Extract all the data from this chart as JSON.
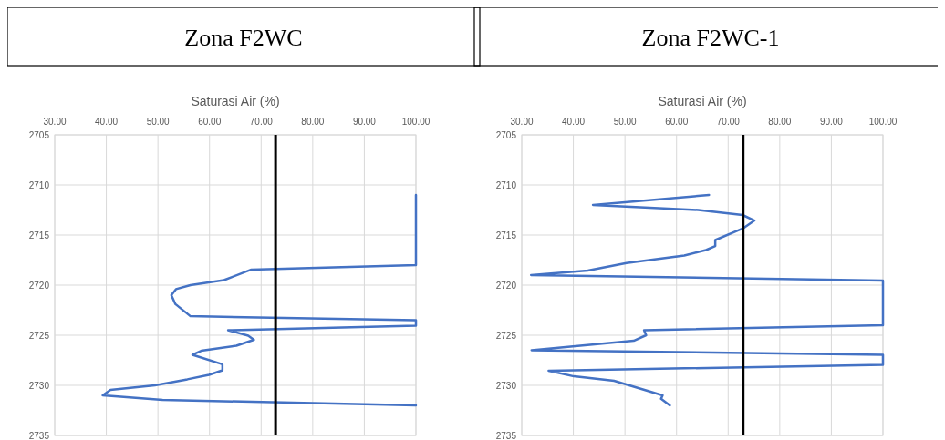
{
  "chart_data": [
    {
      "type": "line",
      "title": "Zona F2WC",
      "xlabel": "Saturasi Air (%)",
      "xlim": [
        30,
        100
      ],
      "xticks": [
        {
          "value": 30,
          "label": "30.00"
        },
        {
          "value": 40,
          "label": "40.00"
        },
        {
          "value": 50,
          "label": "50.00"
        },
        {
          "value": 60,
          "label": "60.00"
        },
        {
          "value": 70,
          "label": "70.00"
        },
        {
          "value": 80,
          "label": "80.00"
        },
        {
          "value": 90,
          "label": "90.00"
        },
        {
          "value": 100,
          "label": "100.00"
        }
      ],
      "ylim": [
        2735,
        2705
      ],
      "yticks": [
        2705,
        2710,
        2715,
        2720,
        2725,
        2730,
        2735
      ],
      "grid": true,
      "series": [
        {
          "color": "#4472c4",
          "x": [
            100,
            100,
            68.1,
            62.8,
            56.3,
            53.5,
            52.6,
            53.4,
            56.3,
            100,
            100,
            63.6,
            67.5,
            68.6,
            65.2,
            58.4,
            56.7,
            62.5,
            62.5,
            59.9,
            55.7,
            49.4,
            40.8,
            39.3,
            50.9,
            100
          ],
          "values": [
            2711,
            2718,
            2718.45,
            2719.5,
            2720,
            2720.4,
            2721,
            2721.9,
            2723.1,
            2723.5,
            2724.05,
            2724.5,
            2725.05,
            2725.45,
            2726.05,
            2726.55,
            2726.95,
            2727.9,
            2728.5,
            2728.95,
            2729.4,
            2730,
            2730.45,
            2731,
            2731.45,
            2732
          ]
        }
      ],
      "ref_lines": [
        {
          "axis": "x",
          "value": 72.8,
          "color": "#000000"
        }
      ]
    },
    {
      "type": "line",
      "title": "Zona F2WC-1",
      "xlabel": "Saturasi Air (%)",
      "xlim": [
        30,
        100
      ],
      "xticks": [
        {
          "value": 30,
          "label": "30.00"
        },
        {
          "value": 40,
          "label": "40.00"
        },
        {
          "value": 50,
          "label": "50.00"
        },
        {
          "value": 60,
          "label": "60.00"
        },
        {
          "value": 70,
          "label": "70.00"
        },
        {
          "value": 80,
          "label": "80.00"
        },
        {
          "value": 90,
          "label": "90.00"
        },
        {
          "value": 100,
          "label": "100.00"
        }
      ],
      "ylim": [
        2735,
        2705
      ],
      "yticks": [
        2705,
        2710,
        2715,
        2720,
        2725,
        2730,
        2735
      ],
      "grid": true,
      "series": [
        {
          "color": "#4472c4",
          "x": [
            66.3,
            43.8,
            64.2,
            72.8,
            75.1,
            73,
            67.5,
            67.5,
            65.7,
            61.5,
            50.3,
            42.8,
            31.8,
            100,
            100,
            53.7,
            54.1,
            51.7,
            31.9,
            100,
            100,
            35.2,
            40.1,
            47.9,
            57.3,
            57,
            58.7
          ],
          "values": [
            2711,
            2712,
            2712.5,
            2713,
            2713.55,
            2714.3,
            2715.5,
            2716.1,
            2716.5,
            2717.05,
            2717.8,
            2718.55,
            2719,
            2719.55,
            2724,
            2724.5,
            2725,
            2725.55,
            2726.5,
            2726.95,
            2727.95,
            2728.55,
            2729.1,
            2729.55,
            2731,
            2731.35,
            2732
          ]
        }
      ],
      "ref_lines": [
        {
          "axis": "x",
          "value": 72.9,
          "color": "#000000"
        }
      ]
    }
  ]
}
